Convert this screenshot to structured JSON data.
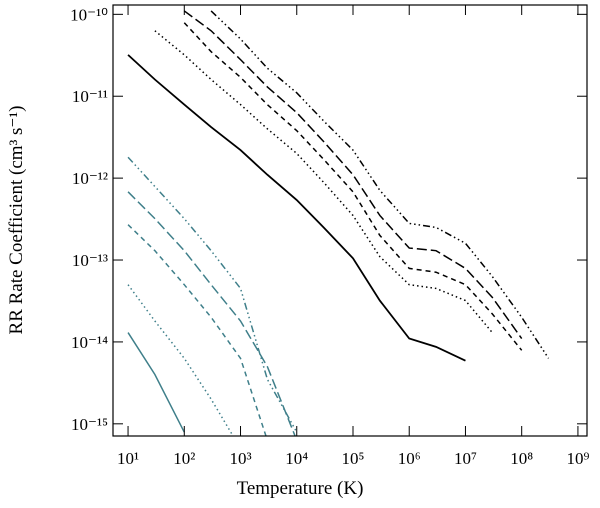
{
  "chart_data": {
    "type": "line",
    "x_label": "Temperature (K)",
    "y_label": "RR Rate Coefficient (cm³ s⁻¹)",
    "x_scale": "log",
    "y_scale": "log",
    "xlim": [
      5.4,
      1450000000
    ],
    "ylim": [
      7.1e-16,
      1.3e-10
    ],
    "xticks": [
      {
        "value": 10,
        "label": "10¹"
      },
      {
        "value": 100,
        "label": "10²"
      },
      {
        "value": 1000,
        "label": "10³"
      },
      {
        "value": 10000,
        "label": "10⁴"
      },
      {
        "value": 100000,
        "label": "10⁵"
      },
      {
        "value": 1000000,
        "label": "10⁶"
      },
      {
        "value": 10000000,
        "label": "10⁷"
      },
      {
        "value": 100000000,
        "label": "10⁸"
      },
      {
        "value": 1000000000,
        "label": "10⁹"
      }
    ],
    "yticks": [
      {
        "value": 1e-15,
        "label": "10⁻¹⁵"
      },
      {
        "value": 1e-14,
        "label": "10⁻¹⁴"
      },
      {
        "value": 1e-13,
        "label": "10⁻¹³"
      },
      {
        "value": 1e-12,
        "label": "10⁻¹²"
      },
      {
        "value": 1e-11,
        "label": "10⁻¹¹"
      },
      {
        "value": 1e-10,
        "label": "10⁻¹⁰"
      }
    ],
    "x": [
      10,
      30,
      100,
      300,
      1000,
      3000,
      10000,
      30000,
      100000,
      300000,
      1000000,
      3000000,
      10000000,
      30000000,
      100000000,
      300000000
    ],
    "series": [
      {
        "color": "#000000",
        "dash": "solid",
        "values": [
          3.2e-11,
          1.6e-11,
          7.9e-12,
          4.2e-12,
          2.2e-12,
          1.1e-12,
          5.4e-13,
          2.5e-13,
          1.05e-13,
          3.2e-14,
          1.1e-14,
          8.7e-15,
          5.9e-15,
          null,
          null,
          null
        ]
      },
      {
        "color": "#000000",
        "dash": "dotted",
        "values": [
          null,
          6.3e-11,
          3.2e-11,
          1.6e-11,
          7.9e-12,
          4e-12,
          2e-12,
          8.9e-13,
          3.5e-13,
          1.1e-13,
          5e-14,
          4.5e-14,
          3.2e-14,
          1.3e-14,
          null,
          null
        ]
      },
      {
        "color": "#000000",
        "dash": "dashed",
        "values": [
          null,
          null,
          7.9e-11,
          3.5e-11,
          1.7e-11,
          7.9e-12,
          3.8e-12,
          1.7e-12,
          6.8e-13,
          2e-13,
          7.9e-14,
          7.1e-14,
          5e-14,
          2.2e-14,
          7.9e-15,
          null
        ]
      },
      {
        "color": "#000000",
        "dash": "long-dash",
        "values": [
          null,
          null,
          1.1e-10,
          6.3e-11,
          2.8e-11,
          1.3e-11,
          6.3e-12,
          2.8e-12,
          1.1e-12,
          3.5e-13,
          1.4e-13,
          1.3e-13,
          7.9e-14,
          3.5e-14,
          1.1e-14,
          null
        ]
      },
      {
        "color": "#000000",
        "dash": "dash-dot-dot-dot",
        "values": [
          null,
          null,
          null,
          1.1e-10,
          5e-11,
          2.2e-11,
          1.1e-11,
          5e-12,
          2.2e-12,
          7.1e-13,
          2.8e-13,
          2.5e-13,
          1.6e-13,
          6.3e-14,
          2e-14,
          6.3e-15
        ]
      },
      {
        "color": "#3f7f8a",
        "dash": "solid",
        "values": [
          1.3e-14,
          4e-15,
          7.9e-16,
          null,
          null,
          null,
          null,
          null,
          null,
          null,
          null,
          null,
          null,
          null,
          null,
          null
        ]
      },
      {
        "color": "#3f7f8a",
        "dash": "dotted",
        "values": [
          5e-14,
          1.8e-14,
          6.3e-15,
          2e-15,
          5e-16,
          null,
          null,
          null,
          null,
          null,
          null,
          null,
          null,
          null,
          null,
          null
        ]
      },
      {
        "color": "#3f7f8a",
        "dash": "dashed",
        "values": [
          2.7e-13,
          1.3e-13,
          5e-14,
          2e-14,
          6.3e-15,
          6.3e-16,
          null,
          null,
          null,
          null,
          null,
          null,
          null,
          null,
          null,
          null
        ]
      },
      {
        "color": "#3f7f8a",
        "dash": "long-dash",
        "values": [
          6.8e-13,
          3.2e-13,
          1.3e-13,
          5e-14,
          1.8e-14,
          5e-15,
          6.3e-16,
          null,
          null,
          null,
          null,
          null,
          null,
          null,
          null,
          null
        ]
      },
      {
        "color": "#3f7f8a",
        "dash": "dash-dot-dot-dot",
        "values": [
          1.8e-12,
          7.9e-13,
          3.2e-13,
          1.3e-13,
          4.5e-14,
          3.5e-15,
          7.9e-16,
          null,
          null,
          null,
          null,
          null,
          null,
          null,
          null,
          null
        ]
      }
    ]
  }
}
